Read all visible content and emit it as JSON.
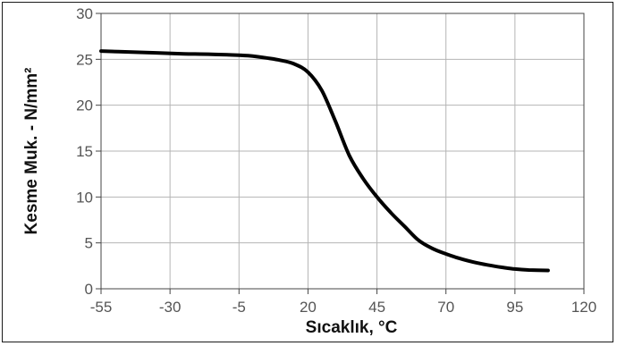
{
  "chart_data": {
    "type": "line",
    "title": "",
    "xlabel": "Sıcaklık, °C",
    "ylabel": "Kesme Muk. - N/mm²",
    "xlim": [
      -55,
      120
    ],
    "ylim": [
      0,
      30
    ],
    "xticks": [
      -55,
      -30,
      -5,
      20,
      45,
      70,
      95,
      120
    ],
    "yticks": [
      0,
      5,
      10,
      15,
      20,
      25,
      30
    ],
    "grid": true,
    "legend": "none",
    "line_color": "#000000",
    "series": [
      {
        "x": [
          -55,
          -45,
          -35,
          -25,
          -15,
          -5,
          0,
          5,
          10,
          15,
          20,
          25,
          30,
          35,
          40,
          45,
          50,
          55,
          60,
          65,
          70,
          75,
          80,
          85,
          90,
          95,
          100,
          107
        ],
        "values": [
          25.9,
          25.8,
          25.7,
          25.6,
          25.55,
          25.45,
          25.35,
          25.15,
          24.9,
          24.5,
          23.6,
          21.6,
          18.2,
          14.5,
          12.0,
          10.0,
          8.3,
          6.8,
          5.3,
          4.4,
          3.8,
          3.3,
          2.9,
          2.6,
          2.35,
          2.15,
          2.05,
          2.0
        ]
      }
    ]
  }
}
